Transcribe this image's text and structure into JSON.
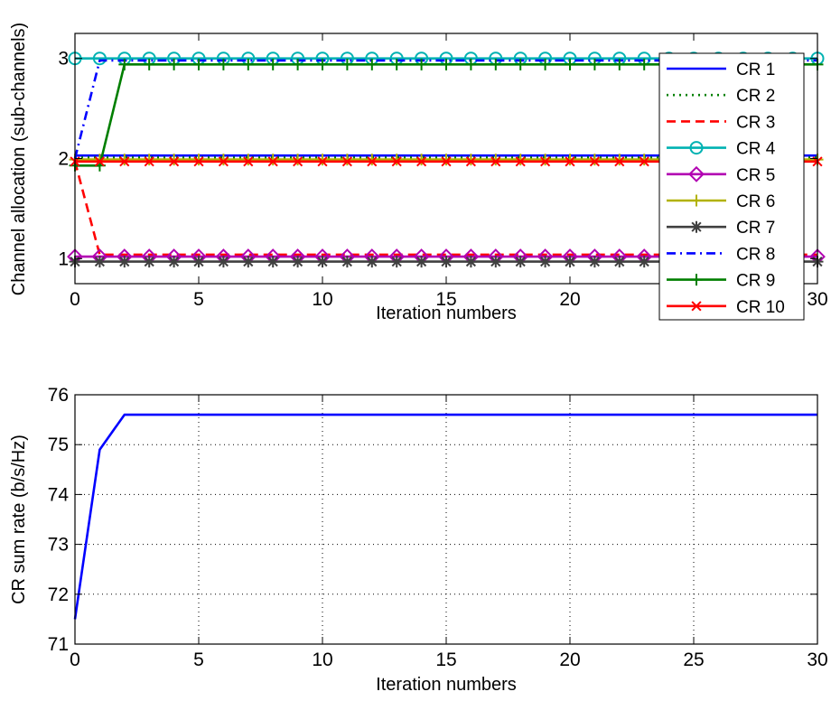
{
  "chart_data": [
    {
      "type": "line",
      "xlabel": "Iteration numbers",
      "ylabel": "Channel allocation (sub-channels)",
      "xlim": [
        0,
        30
      ],
      "ylim": [
        0.75,
        3.25
      ],
      "xticks": [
        0,
        5,
        10,
        15,
        20,
        25,
        30
      ],
      "yticks": [
        1,
        2,
        3
      ],
      "legend_position": "top-right",
      "grid": false,
      "x": [
        0,
        1,
        2,
        3,
        4,
        5,
        6,
        7,
        8,
        9,
        10,
        11,
        12,
        13,
        14,
        15,
        16,
        17,
        18,
        19,
        20,
        21,
        22,
        23,
        24,
        25,
        26,
        27,
        28,
        29,
        30
      ],
      "series": [
        {
          "name": "CR 1",
          "color": "#0000ff",
          "dash": "solid",
          "marker": "none",
          "values": [
            2.03,
            2.03,
            2.03,
            2.03,
            2.03,
            2.03,
            2.03,
            2.03,
            2.03,
            2.03,
            2.03,
            2.03,
            2.03,
            2.03,
            2.03,
            2.03,
            2.03,
            2.03,
            2.03,
            2.03,
            2.03,
            2.03,
            2.03,
            2.03,
            2.03,
            2.03,
            2.03,
            2.03,
            2.03,
            2.03,
            2.03
          ]
        },
        {
          "name": "CR 2",
          "color": "#008000",
          "dash": "dotted",
          "marker": "none",
          "values": [
            2.01,
            2.01,
            2.01,
            2.01,
            2.01,
            2.01,
            2.01,
            2.01,
            2.01,
            2.01,
            2.01,
            2.01,
            2.01,
            2.01,
            2.01,
            2.01,
            2.01,
            2.01,
            2.01,
            2.01,
            2.01,
            2.01,
            2.01,
            2.01,
            2.01,
            2.01,
            2.01,
            2.01,
            2.01,
            2.01,
            2.01
          ]
        },
        {
          "name": "CR 3",
          "color": "#ff0000",
          "dash": "dashed",
          "marker": "none",
          "values": [
            1.97,
            1.04,
            1.04,
            1.04,
            1.04,
            1.04,
            1.04,
            1.04,
            1.04,
            1.04,
            1.04,
            1.04,
            1.04,
            1.04,
            1.04,
            1.04,
            1.04,
            1.04,
            1.04,
            1.04,
            1.04,
            1.04,
            1.04,
            1.04,
            1.04,
            1.04,
            1.04,
            1.04,
            1.04,
            1.04,
            1.04
          ]
        },
        {
          "name": "CR 4",
          "color": "#00b2b2",
          "dash": "solid",
          "marker": "circle",
          "values": [
            3,
            3,
            3,
            3,
            3,
            3,
            3,
            3,
            3,
            3,
            3,
            3,
            3,
            3,
            3,
            3,
            3,
            3,
            3,
            3,
            3,
            3,
            3,
            3,
            3,
            3,
            3,
            3,
            3,
            3,
            3
          ]
        },
        {
          "name": "CR 5",
          "color": "#b200b2",
          "dash": "solid",
          "marker": "diamond",
          "values": [
            1.02,
            1.02,
            1.02,
            1.02,
            1.02,
            1.02,
            1.02,
            1.02,
            1.02,
            1.02,
            1.02,
            1.02,
            1.02,
            1.02,
            1.02,
            1.02,
            1.02,
            1.02,
            1.02,
            1.02,
            1.02,
            1.02,
            1.02,
            1.02,
            1.02,
            1.02,
            1.02,
            1.02,
            1.02,
            1.02,
            1.02
          ]
        },
        {
          "name": "CR 6",
          "color": "#b2b200",
          "dash": "solid",
          "marker": "plus",
          "values": [
            1.99,
            1.99,
            1.99,
            1.99,
            1.99,
            1.99,
            1.99,
            1.99,
            1.99,
            1.99,
            1.99,
            1.99,
            1.99,
            1.99,
            1.99,
            1.99,
            1.99,
            1.99,
            1.99,
            1.99,
            1.99,
            1.99,
            1.99,
            1.99,
            1.99,
            1.99,
            1.99,
            1.99,
            1.99,
            1.99,
            1.99
          ]
        },
        {
          "name": "CR 7",
          "color": "#404040",
          "dash": "solid",
          "marker": "asterisk",
          "values": [
            0.97,
            0.97,
            0.97,
            0.97,
            0.97,
            0.97,
            0.97,
            0.97,
            0.97,
            0.97,
            0.97,
            0.97,
            0.97,
            0.97,
            0.97,
            0.97,
            0.97,
            0.97,
            0.97,
            0.97,
            0.97,
            0.97,
            0.97,
            0.97,
            0.97,
            0.97,
            0.97,
            0.97,
            0.97,
            0.97,
            0.97
          ]
        },
        {
          "name": "CR 8",
          "color": "#0000ff",
          "dash": "dashdot",
          "marker": "none",
          "values": [
            2,
            2.98,
            2.98,
            2.98,
            2.98,
            2.98,
            2.98,
            2.98,
            2.98,
            2.98,
            2.98,
            2.98,
            2.98,
            2.98,
            2.98,
            2.98,
            2.98,
            2.98,
            2.98,
            2.98,
            2.98,
            2.98,
            2.98,
            2.98,
            2.98,
            2.98,
            2.98,
            2.98,
            2.98,
            2.98,
            2.98
          ]
        },
        {
          "name": "CR 9",
          "color": "#007f00",
          "dash": "solid",
          "marker": "plus",
          "values": [
            1.93,
            1.93,
            2.94,
            2.94,
            2.94,
            2.94,
            2.94,
            2.94,
            2.94,
            2.94,
            2.94,
            2.94,
            2.94,
            2.94,
            2.94,
            2.94,
            2.94,
            2.94,
            2.94,
            2.94,
            2.94,
            2.94,
            2.94,
            2.94,
            2.94,
            2.94,
            2.94,
            2.94,
            2.94,
            2.94,
            2.94
          ]
        },
        {
          "name": "CR 10",
          "color": "#ff0000",
          "dash": "solid",
          "marker": "x",
          "values": [
            1.97,
            1.97,
            1.97,
            1.97,
            1.97,
            1.97,
            1.97,
            1.97,
            1.97,
            1.97,
            1.97,
            1.97,
            1.97,
            1.97,
            1.97,
            1.97,
            1.97,
            1.97,
            1.97,
            1.97,
            1.97,
            1.97,
            1.97,
            1.97,
            1.97,
            1.97,
            1.97,
            1.97,
            1.97,
            1.97,
            1.97
          ]
        }
      ]
    },
    {
      "type": "line",
      "xlabel": "Iteration numbers",
      "ylabel": "CR sum rate (b/s/Hz)",
      "xlim": [
        0,
        30
      ],
      "ylim": [
        71,
        76
      ],
      "xticks": [
        0,
        5,
        10,
        15,
        20,
        25,
        30
      ],
      "yticks": [
        71,
        72,
        73,
        74,
        75,
        76
      ],
      "grid": true,
      "x": [
        0,
        1,
        2,
        30
      ],
      "series": [
        {
          "color": "#0000ff",
          "dash": "solid",
          "marker": "none",
          "values": [
            71.5,
            74.9,
            75.6,
            75.6
          ]
        }
      ]
    }
  ]
}
